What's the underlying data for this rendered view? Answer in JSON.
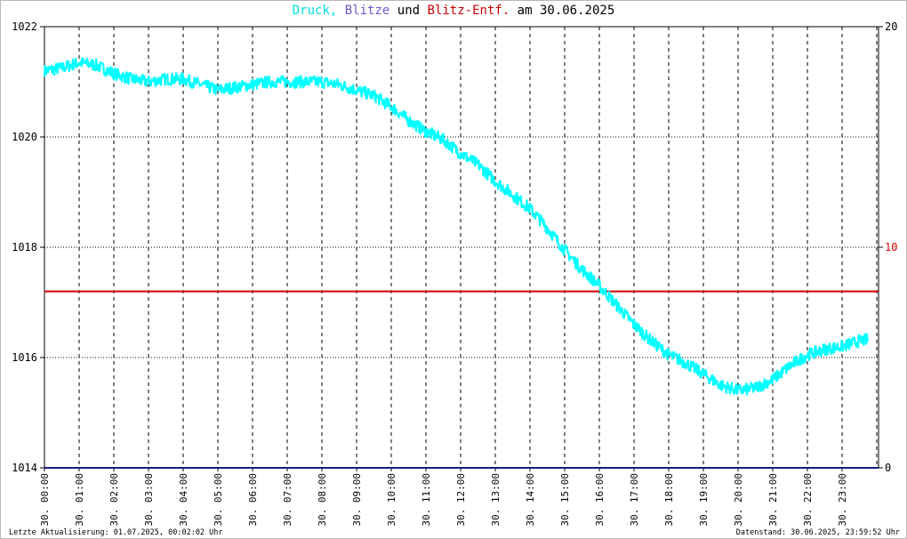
{
  "title": {
    "part1": "Druck,",
    "part2": "Blitze",
    "part3": "und",
    "part4": "Blitz-Entf.",
    "part5": "am 30.06.2025"
  },
  "colors": {
    "druck": "#00ffff",
    "blitze": "#6a5acd",
    "entf": "#cc0000",
    "grid": "#000000",
    "axis_line": "#1a1a80"
  },
  "footer": {
    "left": "Letzte Aktualisierung: 01.07.2025, 00:02:02 Uhr",
    "right": "Datenstand: 30.06.2025, 23:59:52 Uhr"
  },
  "chart_data": {
    "type": "line",
    "x_tick_labels": [
      "30. 00:00",
      "30. 01:00",
      "30. 02:00",
      "30. 03:00",
      "30. 04:00",
      "30. 05:00",
      "30. 06:00",
      "30. 07:00",
      "30. 08:00",
      "30. 09:00",
      "30. 10:00",
      "30. 11:00",
      "30. 12:00",
      "30. 13:00",
      "30. 14:00",
      "30. 15:00",
      "30. 16:00",
      "30. 17:00",
      "30. 18:00",
      "30. 19:00",
      "30. 20:00",
      "30. 21:00",
      "30. 22:00",
      "30. 23:00"
    ],
    "y_left": {
      "ylim": [
        1014,
        1022
      ],
      "ticks": [
        "1014",
        "1016",
        "1018",
        "1020",
        "1022"
      ]
    },
    "y_right": {
      "ylim": [
        0,
        20
      ],
      "ticks": [
        "0",
        "10",
        "20"
      ]
    },
    "x_hours": [
      0,
      0.5,
      1,
      1.5,
      2,
      2.5,
      3,
      3.5,
      4,
      4.5,
      5,
      5.5,
      6,
      6.5,
      7,
      7.5,
      8,
      8.5,
      9,
      9.5,
      10,
      10.5,
      11,
      11.5,
      12,
      12.5,
      13,
      13.5,
      14,
      14.5,
      15,
      15.5,
      16,
      16.5,
      17,
      17.5,
      18,
      18.5,
      19,
      19.5,
      20,
      20.5,
      21,
      21.5,
      22,
      22.5,
      23,
      23.5,
      24
    ],
    "series": [
      {
        "name": "Druck",
        "axis": "left",
        "values": [
          1021.2,
          1021.25,
          1021.35,
          1021.3,
          1021.15,
          1021.05,
          1021.0,
          1021.05,
          1021.05,
          1020.95,
          1020.85,
          1020.9,
          1020.95,
          1021.0,
          1021.0,
          1021.0,
          1021.0,
          1020.95,
          1020.85,
          1020.75,
          1020.55,
          1020.3,
          1020.1,
          1019.95,
          1019.7,
          1019.5,
          1019.2,
          1018.95,
          1018.7,
          1018.35,
          1017.95,
          1017.6,
          1017.3,
          1016.95,
          1016.6,
          1016.3,
          1016.05,
          1015.9,
          1015.7,
          1015.5,
          1015.4,
          1015.45,
          1015.6,
          1015.85,
          1016.05,
          1016.15,
          1016.2,
          1016.3,
          1016.35
        ]
      },
      {
        "name": "Blitz-Entf.",
        "axis": "right",
        "values": [
          8,
          8,
          8,
          8,
          8,
          8,
          8,
          8,
          8,
          8,
          8,
          8,
          8,
          8,
          8,
          8,
          8,
          8,
          8,
          8,
          8,
          8,
          8,
          8,
          8,
          8,
          8,
          8,
          8,
          8,
          8,
          8,
          8,
          8,
          8,
          8,
          8,
          8,
          8,
          8,
          8,
          8,
          8,
          8,
          8,
          8,
          8,
          8,
          8
        ]
      },
      {
        "name": "Blitze",
        "axis": "right",
        "values": [
          0,
          0,
          0,
          0,
          0,
          0,
          0,
          0,
          0,
          0,
          0,
          0,
          0,
          0,
          0,
          0,
          0,
          0,
          0,
          0,
          0,
          0,
          0,
          0,
          0,
          0,
          0,
          0,
          0,
          0,
          0,
          0,
          0,
          0,
          0,
          0,
          0,
          0,
          0,
          0,
          0,
          0,
          0,
          0,
          0,
          0,
          0,
          0,
          0
        ]
      }
    ]
  }
}
